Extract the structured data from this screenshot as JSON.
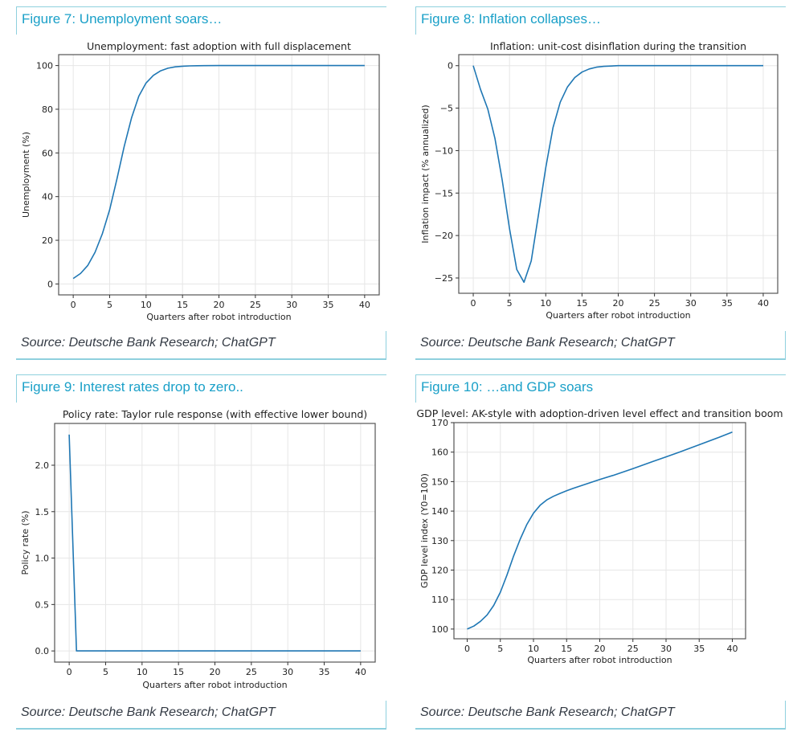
{
  "page": {
    "figures": [
      {
        "header": "Figure 7: Unemployment soars…",
        "source": "Source: Deutsche Bank Research; ChatGPT"
      },
      {
        "header": "Figure 8: Inflation collapses…",
        "source": "Source: Deutsche Bank Research; ChatGPT"
      },
      {
        "header": "Figure 9: Interest rates drop to zero..",
        "source": "Source: Deutsche Bank Research; ChatGPT"
      },
      {
        "header": "Figure 10: …and GDP soars",
        "source": "Source: Deutsche Bank Research; ChatGPT"
      }
    ],
    "colors": {
      "accent": "#1aa0c8",
      "border": "#8fd0de",
      "line": "#1f77b4",
      "grid": "#e6e6e6"
    }
  },
  "chart_data": [
    {
      "type": "line",
      "title": "Unemployment: fast adoption with full displacement",
      "xlabel": "Quarters after robot introduction",
      "ylabel": "Unemployment (%)",
      "xlim": [
        -2,
        42
      ],
      "ylim": [
        -5,
        105
      ],
      "xticks": [
        0,
        5,
        10,
        15,
        20,
        25,
        30,
        35,
        40
      ],
      "yticks": [
        0,
        20,
        40,
        60,
        80,
        100
      ],
      "ytick_labels": [
        "0",
        "20",
        "40",
        "60",
        "80",
        "100"
      ],
      "grid": true,
      "series": [
        {
          "name": "Unemployment",
          "x": [
            0,
            1,
            2,
            3,
            4,
            5,
            6,
            7,
            8,
            9,
            10,
            11,
            12,
            13,
            14,
            15,
            16,
            17,
            18,
            20,
            25,
            30,
            35,
            40
          ],
          "values": [
            2.5,
            4.8,
            8.5,
            14.5,
            23,
            34,
            48,
            63,
            76,
            86,
            92,
            95.5,
            97.6,
            98.8,
            99.4,
            99.7,
            99.85,
            99.93,
            99.97,
            100,
            100,
            100,
            100,
            100
          ]
        }
      ]
    },
    {
      "type": "line",
      "title": "Inflation: unit-cost disinflation during the transition",
      "xlabel": "Quarters after robot introduction",
      "ylabel": "Inflation impact (% annualized)",
      "xlim": [
        -2,
        42
      ],
      "ylim": [
        -26.8,
        1.3
      ],
      "xticks": [
        0,
        5,
        10,
        15,
        20,
        25,
        30,
        35,
        40
      ],
      "yticks": [
        0,
        -5,
        -10,
        -15,
        -20,
        -25
      ],
      "ytick_labels": [
        "0",
        "−5",
        "−10",
        "−15",
        "−20",
        "−25"
      ],
      "grid": true,
      "series": [
        {
          "name": "Inflation impact",
          "x": [
            0,
            1,
            2,
            3,
            4,
            5,
            6,
            7,
            8,
            9,
            10,
            11,
            12,
            13,
            14,
            15,
            16,
            17,
            18,
            20,
            25,
            30,
            35,
            40
          ],
          "values": [
            0,
            -2.8,
            -5.1,
            -8.6,
            -13.5,
            -19.2,
            -24,
            -25.5,
            -23,
            -17.5,
            -12,
            -7.3,
            -4.3,
            -2.5,
            -1.4,
            -0.75,
            -0.38,
            -0.18,
            -0.08,
            0,
            0,
            0,
            0,
            0
          ]
        }
      ]
    },
    {
      "type": "line",
      "title": "Policy rate: Taylor rule response (with effective lower bound)",
      "xlabel": "Quarters after robot introduction",
      "ylabel": "Policy rate (%)",
      "xlim": [
        -2,
        42
      ],
      "ylim": [
        -0.12,
        2.45
      ],
      "xticks": [
        0,
        5,
        10,
        15,
        20,
        25,
        30,
        35,
        40
      ],
      "yticks": [
        0,
        0.5,
        1.0,
        1.5,
        2.0
      ],
      "ytick_labels": [
        "0.0",
        "0.5",
        "1.0",
        "1.5",
        "2.0"
      ],
      "grid": true,
      "series": [
        {
          "name": "Policy rate",
          "x": [
            0,
            1,
            2,
            5,
            10,
            20,
            30,
            40
          ],
          "values": [
            2.33,
            0,
            0,
            0,
            0,
            0,
            0,
            0
          ]
        }
      ]
    },
    {
      "type": "line",
      "title": "GDP level: AK-style with adoption-driven level effect and transition boom",
      "xlabel": "Quarters after robot introduction",
      "ylabel": "GDP level index (Y0=100)",
      "xlim": [
        -2,
        42
      ],
      "ylim": [
        96.7,
        170
      ],
      "xticks": [
        0,
        5,
        10,
        15,
        20,
        25,
        30,
        35,
        40
      ],
      "yticks": [
        100,
        110,
        120,
        130,
        140,
        150,
        160,
        170
      ],
      "ytick_labels": [
        "100",
        "110",
        "120",
        "130",
        "140",
        "150",
        "160",
        "170"
      ],
      "grid": true,
      "series": [
        {
          "name": "GDP level index",
          "x": [
            0,
            1,
            2,
            3,
            4,
            5,
            6,
            7,
            8,
            9,
            10,
            11,
            12,
            13,
            14,
            15,
            16,
            18,
            20,
            22,
            25,
            28,
            30,
            32,
            35,
            38,
            40
          ],
          "values": [
            100,
            101,
            102.6,
            104.8,
            108,
            112.5,
            118.3,
            124.8,
            130.5,
            135.5,
            139.3,
            142,
            143.8,
            145,
            146,
            146.9,
            147.7,
            149.2,
            150.7,
            152.1,
            154.4,
            156.8,
            158.4,
            160,
            162.5,
            165,
            166.8
          ]
        }
      ]
    }
  ]
}
